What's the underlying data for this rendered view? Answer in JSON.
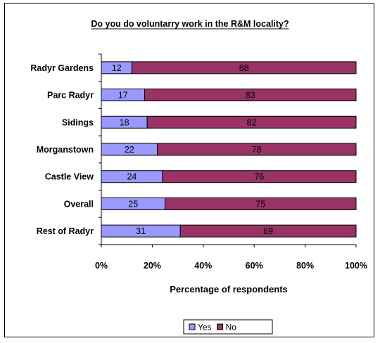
{
  "chart_data": {
    "type": "bar",
    "orientation": "horizontal",
    "stacked": true,
    "title": "Do you do voluntarry work in the R&M locality?",
    "xlabel": "Percentage of respondents",
    "ylabel": "",
    "xlim": [
      0,
      100
    ],
    "xticks": [
      "0%",
      "20%",
      "40%",
      "60%",
      "80%",
      "100%"
    ],
    "categories": [
      "Radyr Gardens",
      "Parc Radyr",
      "Sidings",
      "Morganstown",
      "Castle View",
      "Overall",
      "Rest of Radyr"
    ],
    "series": [
      {
        "name": "Yes",
        "color": "#9999ff",
        "values": [
          12,
          17,
          18,
          22,
          24,
          25,
          31
        ]
      },
      {
        "name": "No",
        "color": "#993366",
        "values": [
          88,
          83,
          82,
          78,
          76,
          75,
          69
        ]
      }
    ],
    "grid": false,
    "legend": "bottom"
  }
}
